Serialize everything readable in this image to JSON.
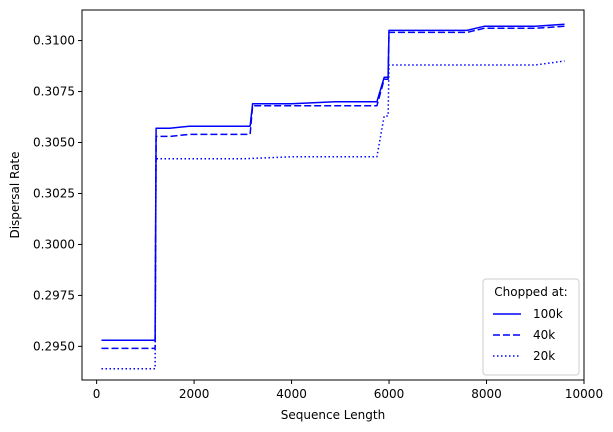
{
  "chart_data": {
    "type": "line",
    "title": "",
    "xlabel": "Sequence Length",
    "ylabel": "Dispersal Rate",
    "xlim": [
      -300,
      10000
    ],
    "ylim": [
      0.29335,
      0.3115
    ],
    "xticks": [
      0,
      2000,
      4000,
      6000,
      8000,
      10000
    ],
    "xtick_labels": [
      "0",
      "2000",
      "4000",
      "6000",
      "8000",
      "10000"
    ],
    "yticks": [
      0.295,
      0.2975,
      0.3,
      0.3025,
      0.305,
      0.3075,
      0.31
    ],
    "ytick_labels": [
      "0.2950",
      "0.2975",
      "0.3000",
      "0.3025",
      "0.3050",
      "0.3075",
      "0.3100"
    ],
    "grid": false,
    "legend": {
      "title": "Chopped at:",
      "position": "lower-right"
    },
    "series": [
      {
        "name": "100k",
        "color": "#0000ff",
        "dash": "solid",
        "x": [
          100,
          1200,
          1220,
          1500,
          1900,
          3150,
          3200,
          4000,
          4900,
          5750,
          5900,
          5980,
          6000,
          6900,
          7600,
          7950,
          9000,
          9600
        ],
        "y": [
          0.2953,
          0.2953,
          0.3057,
          0.3057,
          0.3058,
          0.3058,
          0.3069,
          0.3069,
          0.307,
          0.307,
          0.3082,
          0.3082,
          0.3105,
          0.3105,
          0.3105,
          0.3107,
          0.3107,
          0.3108
        ]
      },
      {
        "name": "40k",
        "color": "#0000ff",
        "dash": "dashed",
        "x": [
          100,
          1200,
          1220,
          1500,
          1900,
          3150,
          3200,
          4000,
          5750,
          5900,
          5980,
          6000,
          6900,
          7600,
          7950,
          9000,
          9600
        ],
        "y": [
          0.2949,
          0.2949,
          0.3053,
          0.3053,
          0.3054,
          0.3054,
          0.3068,
          0.3068,
          0.3068,
          0.3081,
          0.3081,
          0.3104,
          0.3104,
          0.3104,
          0.3106,
          0.3106,
          0.3107
        ]
      },
      {
        "name": "20k",
        "color": "#0000ff",
        "dash": "dotted",
        "x": [
          100,
          1200,
          1220,
          1500,
          2000,
          3000,
          4000,
          5750,
          5900,
          5980,
          6000,
          6900,
          7600,
          8000,
          9000,
          9600
        ],
        "y": [
          0.2939,
          0.2939,
          0.3042,
          0.3042,
          0.3042,
          0.3042,
          0.3043,
          0.3043,
          0.3063,
          0.3063,
          0.3088,
          0.3088,
          0.3088,
          0.3088,
          0.3088,
          0.309
        ]
      }
    ]
  }
}
